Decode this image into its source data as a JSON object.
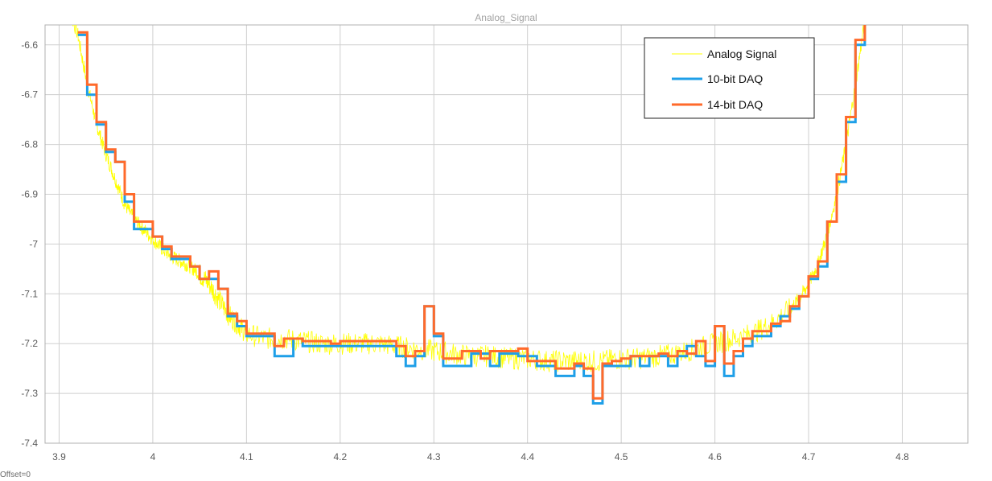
{
  "chart_data": {
    "type": "line",
    "title": "Analog_Signal",
    "footer": "Offset=0",
    "xlim": [
      3.885,
      4.87
    ],
    "ylim": [
      -7.4,
      -6.56
    ],
    "x_ticks": [
      "3.9",
      "4",
      "4.1",
      "4.2",
      "4.3",
      "4.4",
      "4.5",
      "4.6",
      "4.7",
      "4.8"
    ],
    "y_ticks": [
      "-6.6",
      "-6.7",
      "-6.8",
      "-6.9",
      "-7",
      "-7.1",
      "-7.2",
      "-7.3",
      "-7.4"
    ],
    "grid": true,
    "legend_position": "top-right",
    "colors": {
      "Analog Signal": "#ffff00",
      "10-bit DAQ": "#1e9fe8",
      "14-bit DAQ": "#ff6a2b",
      "grid": "#cfcfcf",
      "axis": "#b0b0b0"
    },
    "series": [
      {
        "name": "Analog Signal",
        "points": [
          [
            3.905,
            -6.5
          ],
          [
            3.92,
            -6.58
          ],
          [
            3.93,
            -6.68
          ],
          [
            3.94,
            -6.76
          ],
          [
            3.95,
            -6.82
          ],
          [
            3.96,
            -6.87
          ],
          [
            3.97,
            -6.92
          ],
          [
            3.98,
            -6.95
          ],
          [
            3.99,
            -6.97
          ],
          [
            4.0,
            -6.99
          ],
          [
            4.01,
            -7.01
          ],
          [
            4.02,
            -7.025
          ],
          [
            4.03,
            -7.035
          ],
          [
            4.04,
            -7.045
          ],
          [
            4.05,
            -7.06
          ],
          [
            4.06,
            -7.08
          ],
          [
            4.07,
            -7.11
          ],
          [
            4.08,
            -7.14
          ],
          [
            4.09,
            -7.16
          ],
          [
            4.1,
            -7.18
          ],
          [
            4.12,
            -7.19
          ],
          [
            4.14,
            -7.19
          ],
          [
            4.16,
            -7.195
          ],
          [
            4.18,
            -7.2
          ],
          [
            4.2,
            -7.2
          ],
          [
            4.22,
            -7.2
          ],
          [
            4.24,
            -7.2
          ],
          [
            4.26,
            -7.205
          ],
          [
            4.28,
            -7.21
          ],
          [
            4.3,
            -7.215
          ],
          [
            4.32,
            -7.22
          ],
          [
            4.34,
            -7.225
          ],
          [
            4.36,
            -7.225
          ],
          [
            4.38,
            -7.23
          ],
          [
            4.4,
            -7.23
          ],
          [
            4.42,
            -7.235
          ],
          [
            4.44,
            -7.235
          ],
          [
            4.46,
            -7.235
          ],
          [
            4.48,
            -7.235
          ],
          [
            4.5,
            -7.23
          ],
          [
            4.52,
            -7.23
          ],
          [
            4.54,
            -7.225
          ],
          [
            4.56,
            -7.22
          ],
          [
            4.58,
            -7.21
          ],
          [
            4.6,
            -7.2
          ],
          [
            4.62,
            -7.19
          ],
          [
            4.64,
            -7.18
          ],
          [
            4.66,
            -7.16
          ],
          [
            4.68,
            -7.13
          ],
          [
            4.69,
            -7.11
          ],
          [
            4.7,
            -7.08
          ],
          [
            4.71,
            -7.04
          ],
          [
            4.72,
            -6.98
          ],
          [
            4.73,
            -6.9
          ],
          [
            4.74,
            -6.8
          ],
          [
            4.75,
            -6.68
          ],
          [
            4.76,
            -6.55
          ]
        ]
      },
      {
        "name": "10-bit DAQ",
        "points": [
          [
            3.92,
            -6.58
          ],
          [
            3.93,
            -6.7
          ],
          [
            3.94,
            -6.76
          ],
          [
            3.95,
            -6.815
          ],
          [
            3.96,
            -6.835
          ],
          [
            3.97,
            -6.915
          ],
          [
            3.98,
            -6.97
          ],
          [
            4.0,
            -6.985
          ],
          [
            4.01,
            -7.01
          ],
          [
            4.02,
            -7.03
          ],
          [
            4.04,
            -7.045
          ],
          [
            4.05,
            -7.07
          ],
          [
            4.06,
            -7.07
          ],
          [
            4.07,
            -7.09
          ],
          [
            4.08,
            -7.145
          ],
          [
            4.09,
            -7.165
          ],
          [
            4.1,
            -7.185
          ],
          [
            4.12,
            -7.185
          ],
          [
            4.13,
            -7.225
          ],
          [
            4.15,
            -7.19
          ],
          [
            4.16,
            -7.205
          ],
          [
            4.26,
            -7.225
          ],
          [
            4.27,
            -7.245
          ],
          [
            4.28,
            -7.225
          ],
          [
            4.29,
            -7.125
          ],
          [
            4.3,
            -7.185
          ],
          [
            4.31,
            -7.245
          ],
          [
            4.34,
            -7.22
          ],
          [
            4.36,
            -7.245
          ],
          [
            4.37,
            -7.22
          ],
          [
            4.38,
            -7.22
          ],
          [
            4.39,
            -7.225
          ],
          [
            4.4,
            -7.225
          ],
          [
            4.41,
            -7.245
          ],
          [
            4.42,
            -7.245
          ],
          [
            4.43,
            -7.265
          ],
          [
            4.45,
            -7.245
          ],
          [
            4.46,
            -7.265
          ],
          [
            4.47,
            -7.32
          ],
          [
            4.48,
            -7.245
          ],
          [
            4.51,
            -7.225
          ],
          [
            4.52,
            -7.245
          ],
          [
            4.53,
            -7.225
          ],
          [
            4.55,
            -7.245
          ],
          [
            4.56,
            -7.225
          ],
          [
            4.57,
            -7.205
          ],
          [
            4.58,
            -7.225
          ],
          [
            4.59,
            -7.245
          ],
          [
            4.6,
            -7.165
          ],
          [
            4.61,
            -7.265
          ],
          [
            4.62,
            -7.225
          ],
          [
            4.63,
            -7.205
          ],
          [
            4.64,
            -7.185
          ],
          [
            4.65,
            -7.185
          ],
          [
            4.66,
            -7.165
          ],
          [
            4.67,
            -7.145
          ],
          [
            4.68,
            -7.13
          ],
          [
            4.69,
            -7.105
          ],
          [
            4.7,
            -7.07
          ],
          [
            4.71,
            -7.045
          ],
          [
            4.72,
            -6.955
          ],
          [
            4.73,
            -6.875
          ],
          [
            4.74,
            -6.755
          ],
          [
            4.75,
            -6.6
          ],
          [
            4.76,
            -6.5
          ]
        ]
      },
      {
        "name": "14-bit DAQ",
        "points": [
          [
            3.92,
            -6.575
          ],
          [
            3.93,
            -6.68
          ],
          [
            3.94,
            -6.755
          ],
          [
            3.95,
            -6.81
          ],
          [
            3.96,
            -6.835
          ],
          [
            3.97,
            -6.9
          ],
          [
            3.98,
            -6.955
          ],
          [
            4.0,
            -6.985
          ],
          [
            4.01,
            -7.005
          ],
          [
            4.02,
            -7.025
          ],
          [
            4.03,
            -7.025
          ],
          [
            4.04,
            -7.045
          ],
          [
            4.05,
            -7.07
          ],
          [
            4.06,
            -7.055
          ],
          [
            4.07,
            -7.09
          ],
          [
            4.08,
            -7.14
          ],
          [
            4.09,
            -7.155
          ],
          [
            4.1,
            -7.18
          ],
          [
            4.12,
            -7.18
          ],
          [
            4.13,
            -7.205
          ],
          [
            4.14,
            -7.19
          ],
          [
            4.16,
            -7.195
          ],
          [
            4.18,
            -7.195
          ],
          [
            4.19,
            -7.2
          ],
          [
            4.2,
            -7.195
          ],
          [
            4.26,
            -7.205
          ],
          [
            4.27,
            -7.225
          ],
          [
            4.28,
            -7.215
          ],
          [
            4.29,
            -7.125
          ],
          [
            4.3,
            -7.18
          ],
          [
            4.31,
            -7.23
          ],
          [
            4.33,
            -7.215
          ],
          [
            4.34,
            -7.215
          ],
          [
            4.35,
            -7.23
          ],
          [
            4.36,
            -7.215
          ],
          [
            4.37,
            -7.215
          ],
          [
            4.38,
            -7.215
          ],
          [
            4.39,
            -7.21
          ],
          [
            4.4,
            -7.235
          ],
          [
            4.42,
            -7.235
          ],
          [
            4.43,
            -7.25
          ],
          [
            4.45,
            -7.24
          ],
          [
            4.46,
            -7.25
          ],
          [
            4.47,
            -7.31
          ],
          [
            4.48,
            -7.24
          ],
          [
            4.49,
            -7.235
          ],
          [
            4.5,
            -7.23
          ],
          [
            4.51,
            -7.225
          ],
          [
            4.53,
            -7.225
          ],
          [
            4.54,
            -7.22
          ],
          [
            4.55,
            -7.225
          ],
          [
            4.56,
            -7.215
          ],
          [
            4.57,
            -7.22
          ],
          [
            4.58,
            -7.195
          ],
          [
            4.59,
            -7.235
          ],
          [
            4.6,
            -7.165
          ],
          [
            4.61,
            -7.24
          ],
          [
            4.62,
            -7.215
          ],
          [
            4.63,
            -7.19
          ],
          [
            4.64,
            -7.175
          ],
          [
            4.65,
            -7.175
          ],
          [
            4.66,
            -7.16
          ],
          [
            4.67,
            -7.155
          ],
          [
            4.68,
            -7.125
          ],
          [
            4.69,
            -7.105
          ],
          [
            4.7,
            -7.065
          ],
          [
            4.71,
            -7.035
          ],
          [
            4.72,
            -6.955
          ],
          [
            4.73,
            -6.86
          ],
          [
            4.74,
            -6.745
          ],
          [
            4.75,
            -6.59
          ],
          [
            4.76,
            -6.5
          ]
        ]
      }
    ]
  }
}
